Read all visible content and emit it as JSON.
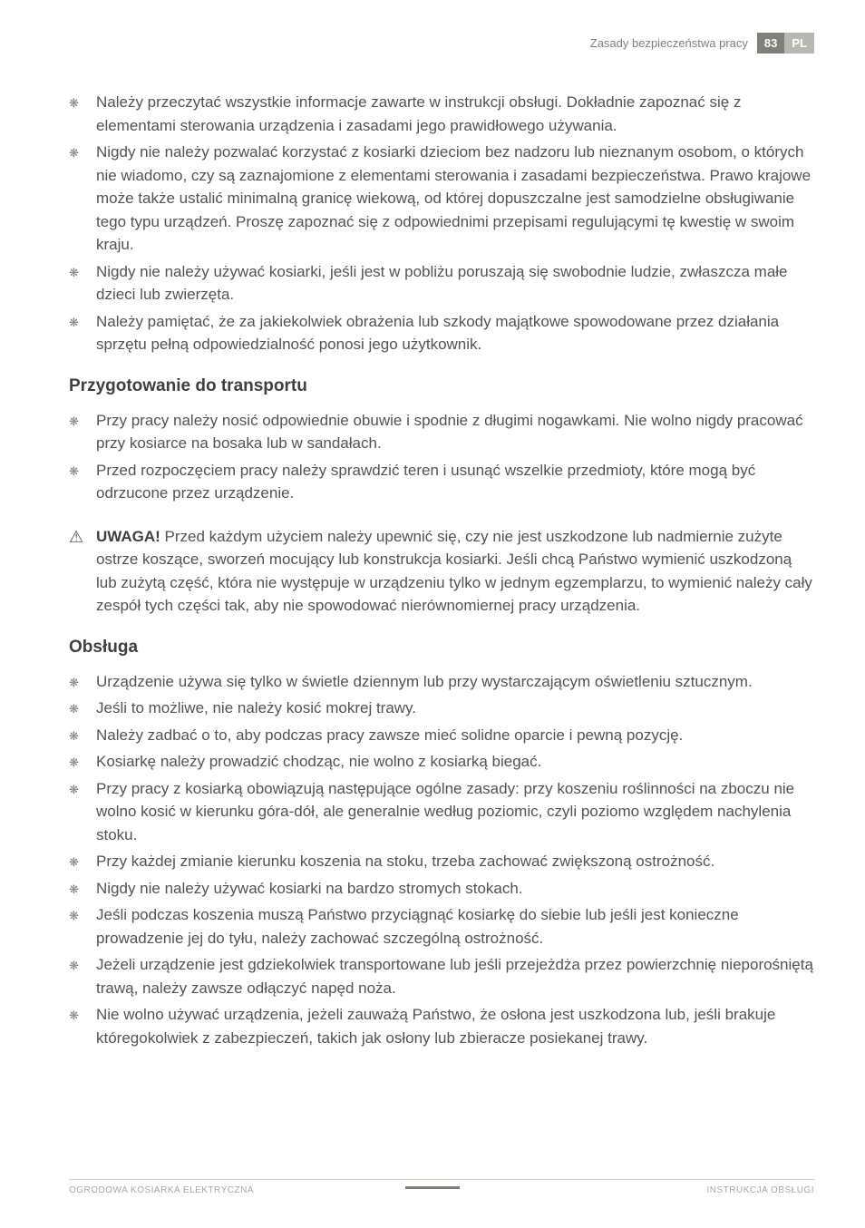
{
  "header": {
    "section_title": "Zasady bezpieczeństwa pracy",
    "page_number": "83",
    "lang_code": "PL"
  },
  "section1": {
    "items": [
      "Należy przeczytać wszystkie informacje zawarte w instrukcji obsługi. Dokładnie zapoznać się z elementami sterowania urządzenia i zasadami jego prawidłowego używania.",
      "Nigdy nie należy pozwalać korzystać z kosiarki dzieciom bez nadzoru lub nieznanym osobom, o których nie wiadomo, czy są zaznajomione z elementami sterowania i zasadami bezpieczeństwa. Prawo krajowe może także ustalić minimalną granicę wiekową, od której dopuszczalne jest samodzielne obsługiwanie tego typu urządzeń. Proszę zapoznać się z odpowiednimi przepisami regulującymi tę kwestię w swoim kraju.",
      "Nigdy nie należy używać kosiarki, jeśli jest w pobliżu poruszają się swobodnie ludzie, zwłaszcza małe dzieci lub zwierzęta.",
      "Należy pamiętać, że za jakiekolwiek obrażenia lub szkody majątkowe spowodowane przez działania sprzętu pełną odpowiedzialność ponosi jego użytkownik."
    ]
  },
  "section2": {
    "heading": "Przygotowanie do transportu",
    "items": [
      "Przy pracy należy nosić odpowiednie obuwie i spodnie z długimi nogawkami. Nie wolno nigdy pracować przy kosiarce na bosaka lub w sandałach.",
      "Przed rozpoczęciem pracy należy sprawdzić teren i usunąć wszelkie przedmioty, które mogą być odrzucone przez urządzenie."
    ],
    "warning_label": "UWAGA!",
    "warning_text": " Przed każdym użyciem należy upewnić się, czy nie jest uszkodzone lub nadmiernie zużyte ostrze koszące, sworzeń mocujący lub konstrukcja kosiarki. Jeśli chcą Państwo wymienić uszkodzoną lub zużytą część, która nie występuje w urządzeniu tylko w jednym egzemplarzu, to wymienić należy cały zespół tych części tak, aby nie spowodować nierównomiernej pracy urządzenia."
  },
  "section3": {
    "heading": "Obsługa",
    "items": [
      "Urządzenie używa się tylko w świetle dziennym lub przy wystarczającym oświetleniu sztucznym.",
      "Jeśli to możliwe, nie należy kosić mokrej trawy.",
      "Należy zadbać o to, aby podczas pracy zawsze mieć solidne oparcie i pewną pozycję.",
      "Kosiarkę należy prowadzić chodząc, nie wolno z kosiarką biegać.",
      "Przy pracy z kosiarką obowiązują następujące ogólne zasady: przy koszeniu roślinności na zboczu nie wolno kosić w kierunku góra-dół, ale generalnie według poziomic, czyli poziomo względem nachylenia stoku.",
      "Przy każdej zmianie kierunku koszenia na stoku, trzeba zachować zwiększoną ostrożność.",
      "Nigdy nie należy używać kosiarki na bardzo stromych stokach.",
      "Jeśli podczas koszenia muszą Państwo przyciągnąć kosiarkę do siebie lub jeśli jest konieczne prowadzenie jej do tyłu, należy zachować szczególną ostrożność.",
      "Jeżeli urządzenie jest gdziekolwiek transportowane lub jeśli przejeżdża przez powierzchnię nieporośniętą trawą, należy zawsze odłączyć napęd noża.",
      "Nie wolno używać urządzenia, jeżeli zauważą Państwo, że osłona jest uszkodzona lub, jeśli brakuje któregokolwiek z zabezpieczeń, takich jak osłony lub zbieracze posiekanej trawy."
    ]
  },
  "footer": {
    "left": "OGRODOWA KOSIARKA ELEKTRYCZNA",
    "right": "INSTRUKCJA OBSŁUGI"
  }
}
